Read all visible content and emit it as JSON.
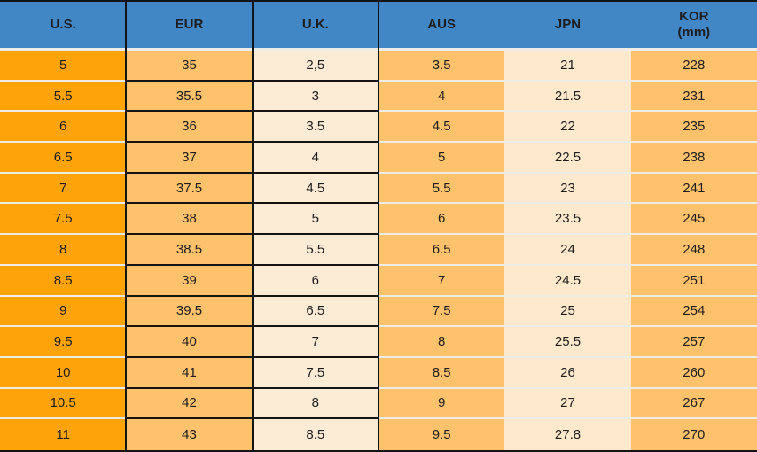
{
  "colors": {
    "header-bg": "#4187C6",
    "col-us-bg": "#FFA408",
    "col-eur-bg": "#FEC16C",
    "col-uk-bg": "#FCEBD5",
    "col-aus-bg": "#FEC16C",
    "col-jpn-bg": "#FEE9CD",
    "col-kor-bg": "#FEC16C",
    "row-separator": "#EDECE6",
    "grid-line": "#141414",
    "text": "#1d1d1d"
  },
  "header": {
    "us": "U.S.",
    "eur": "EUR",
    "uk": "U.K.",
    "aus": "AUS",
    "jpn": "JPN",
    "kor_line1": "KOR",
    "kor_line2": "(mm)"
  },
  "chart_data": {
    "type": "table",
    "columns": [
      "U.S.",
      "EUR",
      "U.K.",
      "AUS",
      "JPN",
      "KOR (mm)"
    ],
    "rows": [
      [
        "5",
        "35",
        "2,5",
        "3.5",
        "21",
        "228"
      ],
      [
        "5.5",
        "35.5",
        "3",
        "4",
        "21.5",
        "231"
      ],
      [
        "6",
        "36",
        "3.5",
        "4.5",
        "22",
        "235"
      ],
      [
        "6.5",
        "37",
        "4",
        "5",
        "22.5",
        "238"
      ],
      [
        "7",
        "37.5",
        "4.5",
        "5.5",
        "23",
        "241"
      ],
      [
        "7.5",
        "38",
        "5",
        "6",
        "23.5",
        "245"
      ],
      [
        "8",
        "38.5",
        "5.5",
        "6.5",
        "24",
        "248"
      ],
      [
        "8.5",
        "39",
        "6",
        "7",
        "24.5",
        "251"
      ],
      [
        "9",
        "39.5",
        "6.5",
        "7.5",
        "25",
        "254"
      ],
      [
        "9.5",
        "40",
        "7",
        "8",
        "25.5",
        "257"
      ],
      [
        "10",
        "41",
        "7.5",
        "8.5",
        "26",
        "260"
      ],
      [
        "10.5",
        "42",
        "8",
        "9",
        "27",
        "267"
      ],
      [
        "11",
        "43",
        "8.5",
        "9.5",
        "27.8",
        "270"
      ]
    ]
  }
}
